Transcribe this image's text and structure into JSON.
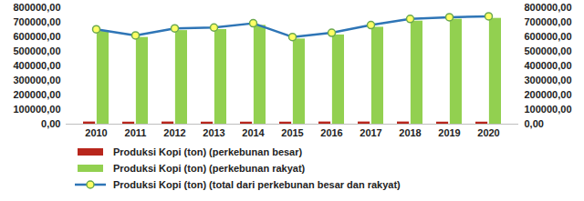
{
  "chart_data": {
    "type": "bar",
    "categories": [
      "2010",
      "2011",
      "2012",
      "2013",
      "2014",
      "2015",
      "2016",
      "2017",
      "2018",
      "2019",
      "2020"
    ],
    "series": [
      {
        "name": "Produksi Kopi (ton) (perkebunan besar)",
        "type": "bar",
        "color": "#b8261c",
        "values": [
          15000,
          14000,
          15000,
          14000,
          14000,
          14000,
          15000,
          15000,
          15000,
          14000,
          14000
        ]
      },
      {
        "name": "Produksi Kopi (ton) (perkebunan rakyat)",
        "type": "bar",
        "color": "#92d050",
        "values": [
          637000,
          596000,
          643000,
          650000,
          679000,
          585000,
          613000,
          666000,
          708000,
          721000,
          727000
        ]
      },
      {
        "name": "Produksi Kopi (ton) (total dari perkebunan besar dan rakyat)",
        "type": "line",
        "axis": "y2",
        "color": "#2e75b6",
        "marker": "circle",
        "values": [
          652000,
          610000,
          658000,
          664000,
          693000,
          599000,
          628000,
          681000,
          723000,
          735000,
          741000
        ]
      }
    ],
    "ylim": [
      0,
      800000
    ],
    "yticks": [
      {
        "value": 0,
        "label": "0,00"
      },
      {
        "value": 100000,
        "label": "100000,00"
      },
      {
        "value": 200000,
        "label": "200000,00"
      },
      {
        "value": 300000,
        "label": "300000,00"
      },
      {
        "value": 400000,
        "label": "400000,00"
      },
      {
        "value": 500000,
        "label": "500000,00"
      },
      {
        "value": 600000,
        "label": "600000,00"
      },
      {
        "value": 700000,
        "label": "700000,00"
      },
      {
        "value": 800000,
        "label": "800000,00"
      }
    ],
    "y2lim": [
      0,
      800000
    ],
    "y2ticks": [
      {
        "value": 0,
        "label": "0,00"
      },
      {
        "value": 100000,
        "label": "100000,00"
      },
      {
        "value": 200000,
        "label": "200000,00"
      },
      {
        "value": 300000,
        "label": "300000,00"
      },
      {
        "value": 400000,
        "label": "400000,00"
      },
      {
        "value": 500000,
        "label": "500000,00"
      },
      {
        "value": 600000,
        "label": "600000,00"
      },
      {
        "value": 700000,
        "label": "700000,00"
      },
      {
        "value": 800000,
        "label": "800000,00"
      }
    ],
    "grid": false,
    "legend": "bottom"
  }
}
